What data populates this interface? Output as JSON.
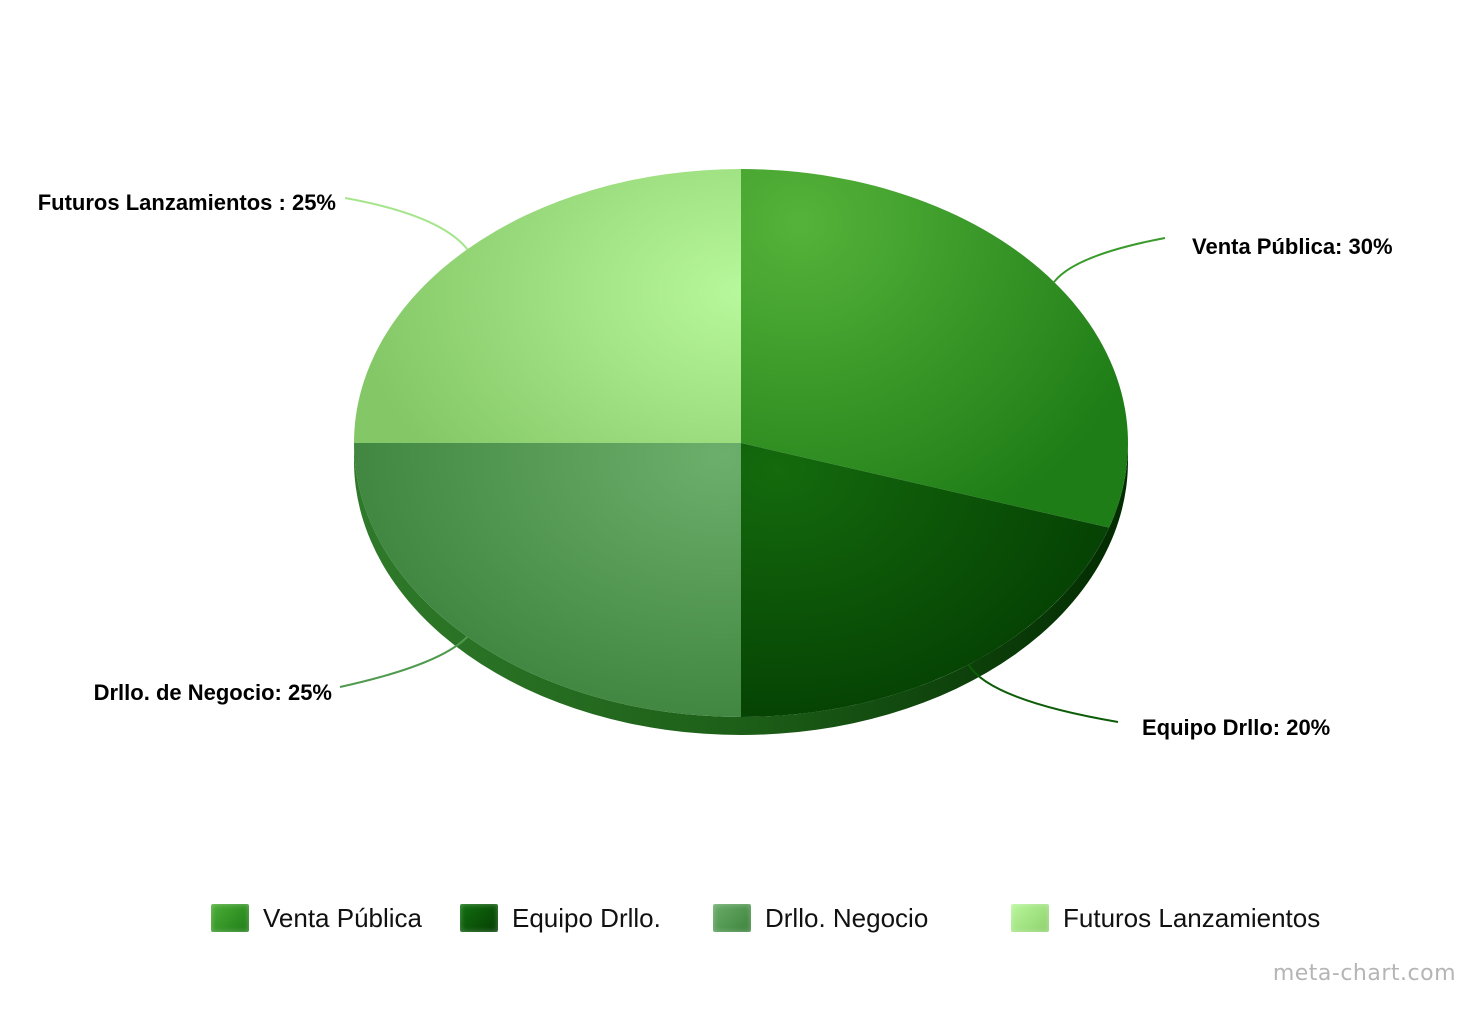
{
  "chart_data": {
    "type": "pie",
    "title": "",
    "slices": [
      {
        "label": "Venta Pública",
        "value": 30,
        "display": "Venta Pública: 30%",
        "color": "#3a9a2c"
      },
      {
        "label": "Equipo Drllo.",
        "value": 20,
        "display": "Equipo Drllo: 20%",
        "color": "#0c5c08"
      },
      {
        "label": "Drllo. Negocio",
        "value": 25,
        "display": "Drllo. de Negocio: 25%",
        "color": "#4f9a4f"
      },
      {
        "label": "Futuros Lanzamientos",
        "value": 25,
        "display": "Futuros Lanzamientos : 25%",
        "color": "#a6e58c"
      }
    ],
    "legend": {
      "placement": "bottom",
      "entries": [
        "Venta Pública",
        "Equipo Drllo.",
        "Drllo. Negocio",
        "Futuros Lanzamientos"
      ]
    }
  },
  "watermark": "meta-chart.com"
}
